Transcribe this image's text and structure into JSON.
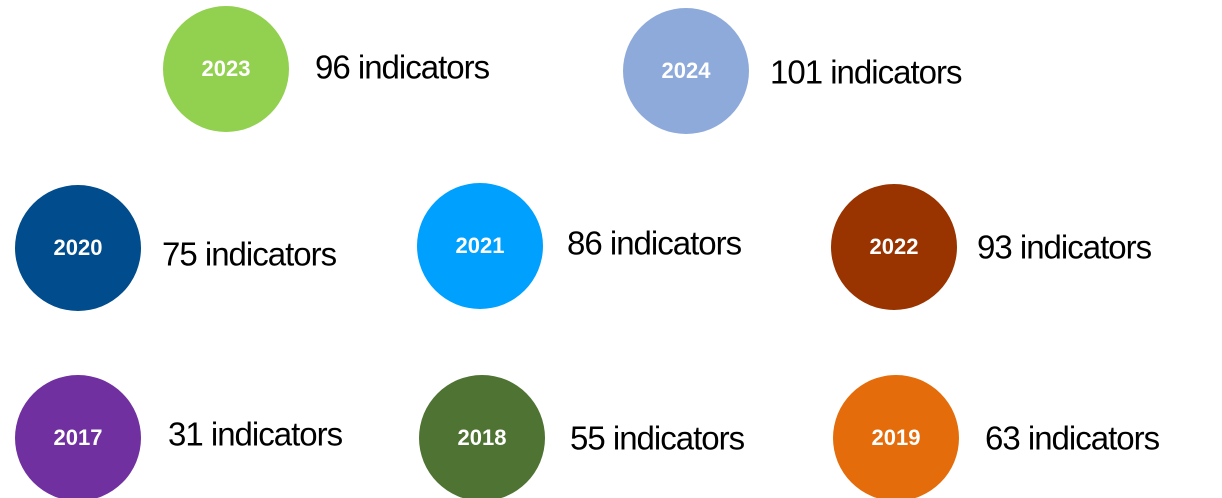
{
  "items": [
    {
      "year": "2023",
      "text": "96 indicators",
      "color": "#92d050"
    },
    {
      "year": "2024",
      "text": "101 indicators",
      "color": "#8eaadb"
    },
    {
      "year": "2020",
      "text": "75 indicators",
      "color": "#004c8c"
    },
    {
      "year": "2021",
      "text": "86 indicators",
      "color": "#00a0ff"
    },
    {
      "year": "2022",
      "text": "93 indicators",
      "color": "#993300"
    },
    {
      "year": "2017",
      "text": "31 indicators",
      "color": "#7030a0"
    },
    {
      "year": "2018",
      "text": "55 indicators",
      "color": "#4e7332"
    },
    {
      "year": "2019",
      "text": "63 indicators",
      "color": "#e46c0a"
    }
  ]
}
